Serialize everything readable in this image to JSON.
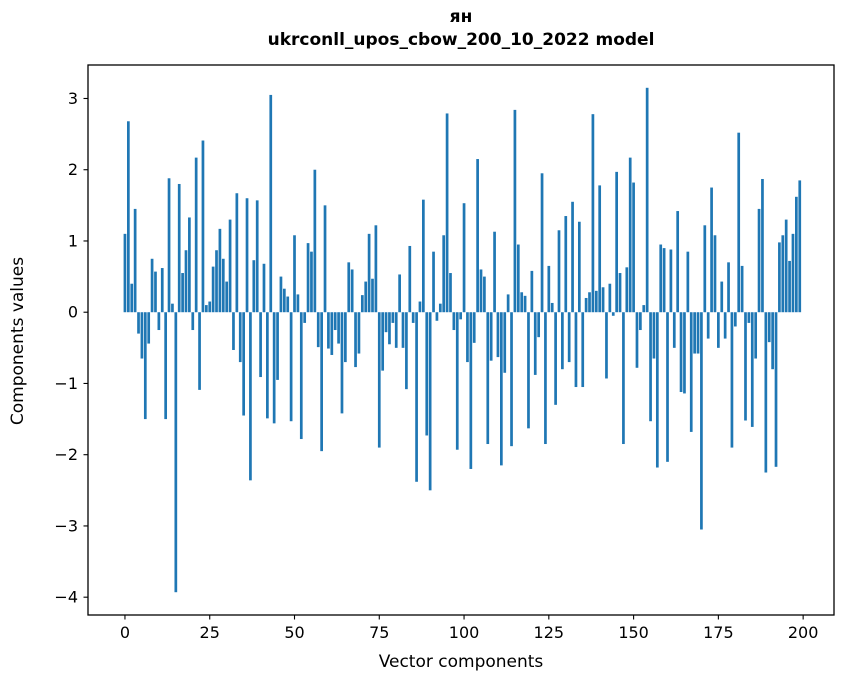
{
  "chart_data": {
    "type": "bar",
    "title_line1": "ян",
    "title_line2": "ukrconll_upos_cbow_200_10_2022 model",
    "xlabel": "Vector components",
    "ylabel": "Components values",
    "bar_color": "#1f77b4",
    "axis_color": "#000000",
    "grid": false,
    "legend": "none",
    "x_start": 0,
    "xticks": [
      0,
      25,
      50,
      75,
      100,
      125,
      150,
      175,
      200
    ],
    "yticks": [
      3,
      2,
      1,
      0,
      -1,
      -2,
      -3,
      -4
    ],
    "xlim": [
      -10.9,
      209.1
    ],
    "ylim": [
      -4.25,
      3.47
    ],
    "values": [
      1.1,
      2.68,
      0.4,
      1.45,
      -0.3,
      -0.65,
      -1.5,
      -0.44,
      0.75,
      0.57,
      -0.25,
      0.62,
      -1.5,
      1.88,
      0.12,
      -3.93,
      1.8,
      0.55,
      0.87,
      1.33,
      -0.25,
      2.17,
      -1.09,
      2.41,
      0.1,
      0.15,
      0.64,
      0.87,
      1.17,
      0.75,
      0.43,
      1.3,
      -0.53,
      1.67,
      -0.7,
      -1.45,
      1.6,
      -2.36,
      0.73,
      1.57,
      -0.91,
      0.68,
      -1.49,
      3.05,
      -1.56,
      -0.95,
      0.5,
      0.33,
      0.22,
      -1.53,
      1.08,
      0.25,
      -1.78,
      -0.15,
      0.97,
      0.85,
      2.0,
      -0.49,
      -1.95,
      1.5,
      -0.51,
      -0.6,
      -0.25,
      -0.44,
      -1.42,
      -0.7,
      0.7,
      0.6,
      -0.77,
      -0.58,
      0.24,
      0.43,
      1.1,
      0.47,
      1.22,
      -1.9,
      -0.82,
      -0.28,
      -0.45,
      -0.15,
      -0.5,
      0.53,
      -0.5,
      -1.08,
      0.93,
      -0.15,
      -2.38,
      0.15,
      1.58,
      -1.73,
      -2.5,
      0.85,
      -0.12,
      0.12,
      1.08,
      2.79,
      0.55,
      -0.25,
      -1.93,
      -0.1,
      1.53,
      -0.7,
      -2.2,
      -0.43,
      2.15,
      0.6,
      0.5,
      -1.85,
      -0.68,
      1.13,
      -0.63,
      -2.15,
      -0.85,
      0.25,
      -1.88,
      2.84,
      0.95,
      0.28,
      0.23,
      -1.63,
      0.58,
      -0.88,
      -0.35,
      1.95,
      -1.85,
      0.65,
      0.13,
      -1.3,
      1.15,
      -0.8,
      1.35,
      -0.7,
      1.55,
      -1.05,
      1.27,
      -1.05,
      0.2,
      0.28,
      2.78,
      0.3,
      1.78,
      0.35,
      -0.93,
      0.4,
      -0.05,
      1.97,
      0.55,
      -1.85,
      0.63,
      2.17,
      1.82,
      -0.78,
      -0.25,
      0.1,
      3.15,
      -1.53,
      -0.65,
      -2.18,
      0.95,
      0.9,
      -2.1,
      0.88,
      -0.5,
      1.42,
      -1.12,
      -1.14,
      0.85,
      -1.68,
      -0.58,
      -0.58,
      -3.05,
      1.22,
      -0.37,
      1.75,
      1.08,
      -0.5,
      0.43,
      -0.37,
      0.7,
      -1.9,
      -0.2,
      2.52,
      0.65,
      -1.52,
      -0.15,
      -1.61,
      -0.65,
      1.45,
      1.87,
      -2.25,
      -0.42,
      -0.8,
      -2.17,
      0.98,
      1.08,
      1.3,
      0.72,
      1.1,
      1.62,
      1.85
    ]
  }
}
